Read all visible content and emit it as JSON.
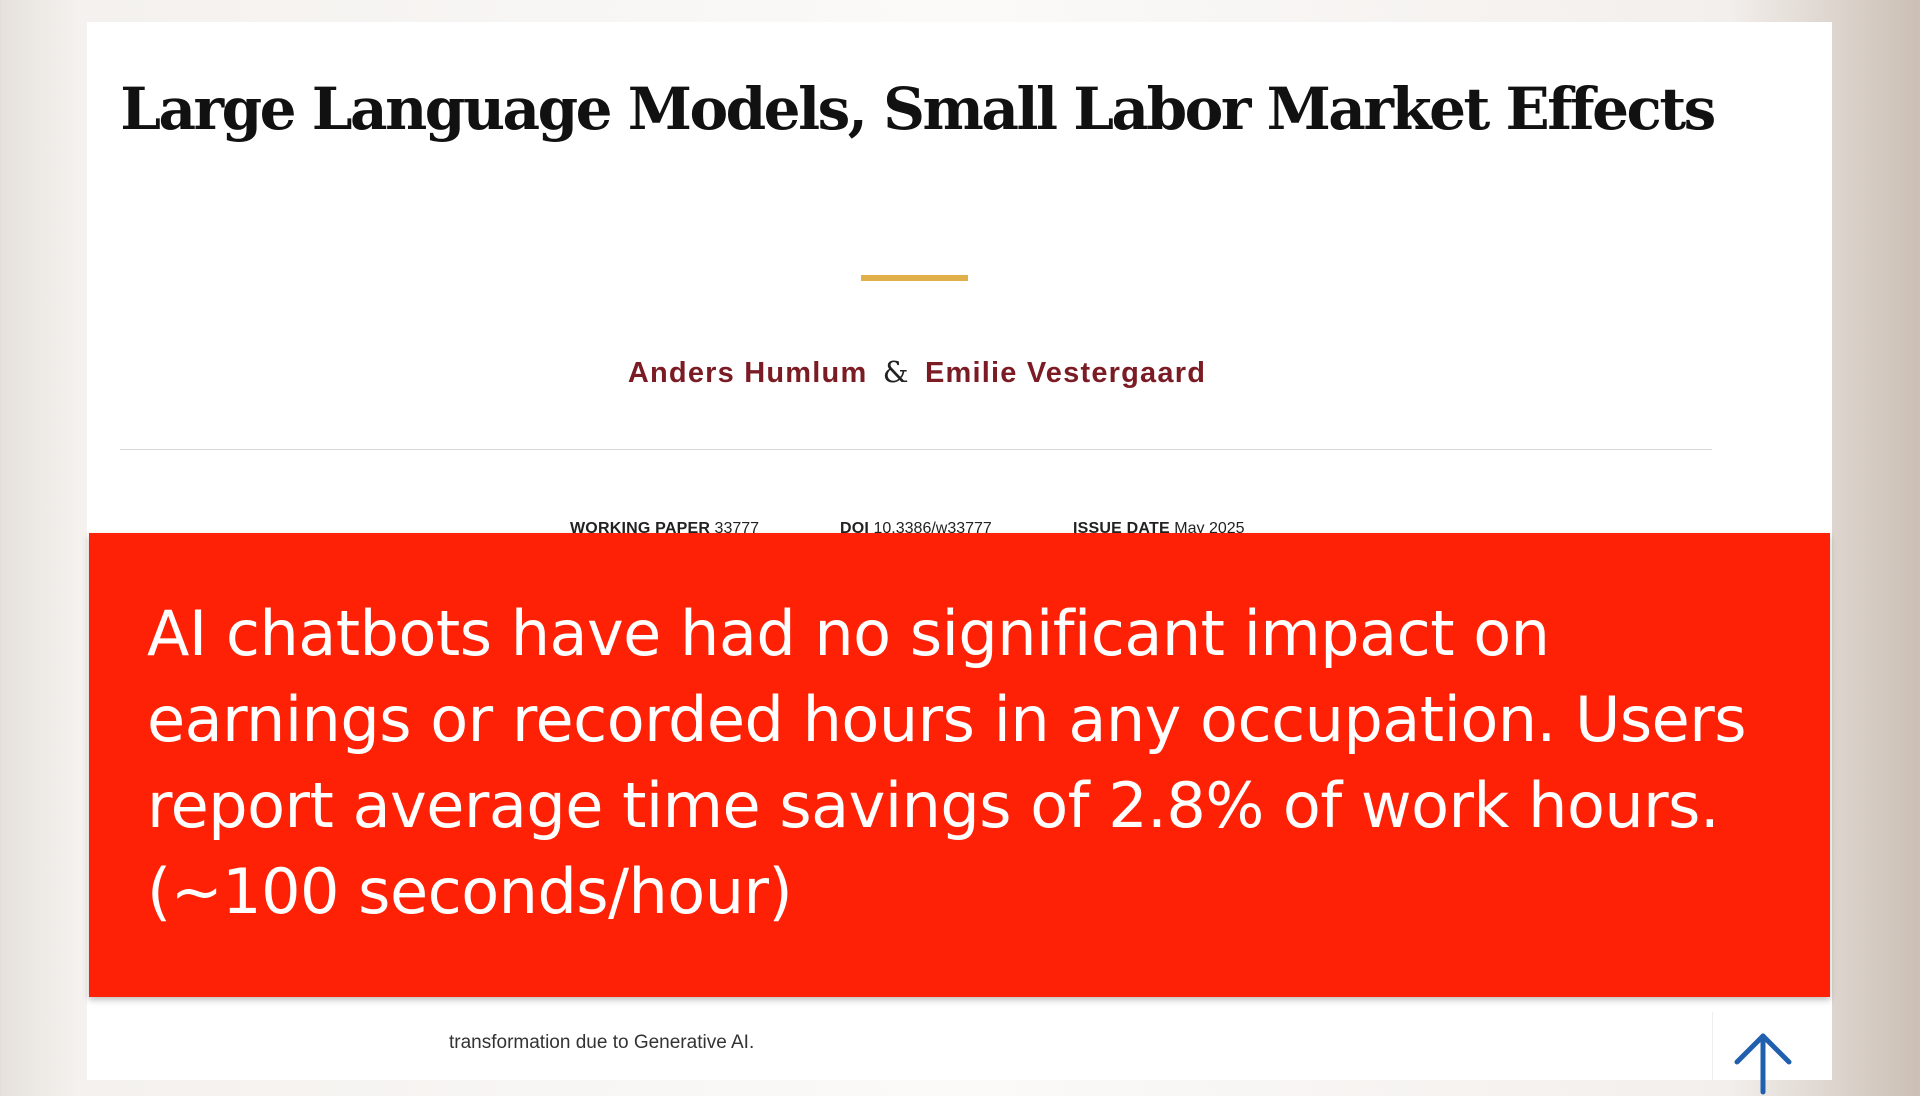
{
  "paper": {
    "title": "Large Language Models, Small Labor Market Effects",
    "authors": {
      "first": "Anders Humlum",
      "separator": "&",
      "second": "Emilie Vestergaard"
    },
    "meta": {
      "working_paper_label": "WORKING PAPER",
      "working_paper_value": "33777",
      "doi_label": "DOI",
      "doi_value": "10.3386/w33777",
      "issue_date_label": "ISSUE DATE",
      "issue_date_value": "May 2025"
    },
    "abstract_visible_text": "transformation due to Generative AI."
  },
  "banner": {
    "text": "AI chatbots have had no significant impact on earnings or recorded hours in any occupation. Users report average time savings of 2.8% of work hours. (~100 seconds/hour)"
  },
  "icons": {
    "scroll_top": "arrow-up-icon"
  },
  "colors": {
    "banner": "#ff2105",
    "author_link": "#7b1c24",
    "accent_rule": "#e2b04a",
    "scroll_arrow": "#1f5fae"
  }
}
